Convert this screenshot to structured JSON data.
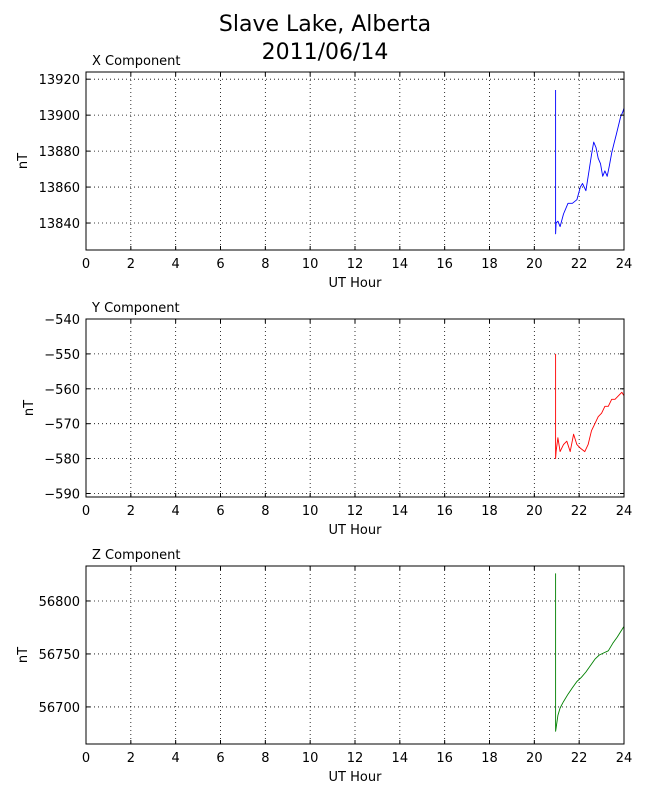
{
  "figure": {
    "title": "Slave Lake, Alberta",
    "subtitle": "2011/06/14"
  },
  "chart_data": [
    {
      "type": "line",
      "title": "X Component",
      "xlabel": "UT Hour",
      "ylabel": "nT",
      "xlim": [
        0,
        24
      ],
      "ylim": [
        13825,
        13924
      ],
      "xticks": [
        0,
        2,
        4,
        6,
        8,
        10,
        12,
        14,
        16,
        18,
        20,
        22,
        24
      ],
      "yticks": [
        13840,
        13860,
        13880,
        13900,
        13920
      ],
      "grid": true,
      "series": [
        {
          "color": "#0000ff",
          "x": [
            20.95,
            20.95,
            20.97,
            21.05,
            21.15,
            21.3,
            21.5,
            21.7,
            21.9,
            22.05,
            22.15,
            22.3,
            22.45,
            22.55,
            22.65,
            22.75,
            22.85,
            22.95,
            23.05,
            23.15,
            23.25,
            23.35,
            23.45,
            23.55,
            23.65,
            23.75,
            23.85,
            23.95,
            24.0
          ],
          "y": [
            13914,
            13834,
            13840,
            13841,
            13838,
            13845,
            13851,
            13851,
            13853,
            13860,
            13862,
            13858,
            13870,
            13878,
            13885,
            13882,
            13876,
            13873,
            13866,
            13869,
            13866,
            13872,
            13879,
            13884,
            13889,
            13894,
            13899,
            13902,
            13904
          ]
        }
      ]
    },
    {
      "type": "line",
      "title": "Y Component",
      "xlabel": "UT Hour",
      "ylabel": "nT",
      "xlim": [
        0,
        24
      ],
      "ylim": [
        -591,
        -540
      ],
      "xticks": [
        0,
        2,
        4,
        6,
        8,
        10,
        12,
        14,
        16,
        18,
        20,
        22,
        24
      ],
      "yticks": [
        -540,
        -550,
        -560,
        -570,
        -580,
        -590
      ],
      "grid": true,
      "series": [
        {
          "color": "#ff0000",
          "x": [
            20.95,
            20.95,
            20.97,
            21.05,
            21.15,
            21.3,
            21.45,
            21.6,
            21.75,
            21.9,
            22.05,
            22.25,
            22.4,
            22.55,
            22.7,
            22.85,
            23.0,
            23.15,
            23.3,
            23.45,
            23.6,
            23.75,
            23.9,
            24.0
          ],
          "y": [
            -550,
            -580,
            -578,
            -574,
            -578,
            -576,
            -575,
            -578,
            -573,
            -576,
            -577,
            -578,
            -576,
            -572,
            -570,
            -568,
            -567,
            -565,
            -565,
            -563,
            -563,
            -562,
            -561,
            -562
          ]
        }
      ]
    },
    {
      "type": "line",
      "title": "Z Component",
      "xlabel": "UT Hour",
      "ylabel": "nT",
      "xlim": [
        0,
        24
      ],
      "ylim": [
        56665,
        56833
      ],
      "xticks": [
        0,
        2,
        4,
        6,
        8,
        10,
        12,
        14,
        16,
        18,
        20,
        22,
        24
      ],
      "yticks": [
        56700,
        56750,
        56800
      ],
      "grid": true,
      "series": [
        {
          "color": "#008000",
          "x": [
            20.95,
            20.95,
            20.97,
            21.05,
            21.15,
            21.3,
            21.5,
            21.7,
            21.9,
            22.1,
            22.3,
            22.5,
            22.7,
            22.9,
            23.1,
            23.3,
            23.5,
            23.7,
            23.85,
            24.0
          ],
          "y": [
            56826,
            56677,
            56680,
            56692,
            56699,
            56705,
            56712,
            56718,
            56724,
            56728,
            56733,
            56739,
            56745,
            56749,
            56751,
            56753,
            56760,
            56766,
            56771,
            56776
          ]
        }
      ]
    }
  ]
}
